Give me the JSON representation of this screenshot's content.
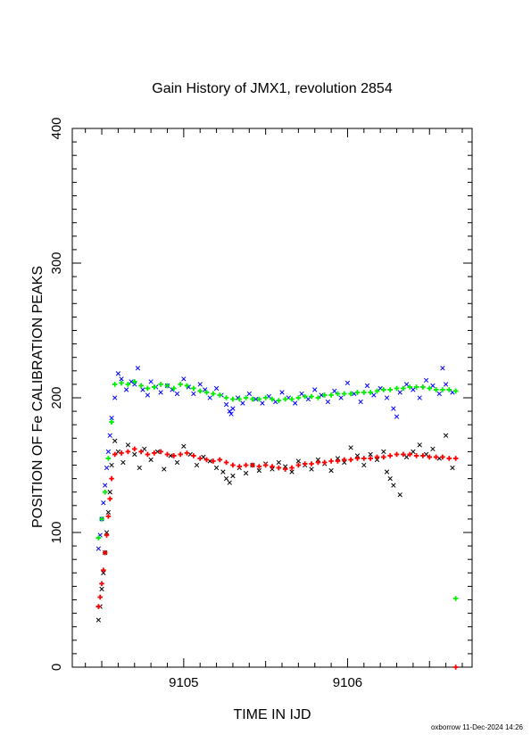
{
  "chart_data": {
    "type": "scatter",
    "title": "Gain History of JMX1, revolution 2854",
    "xlabel": "TIME IN IJD",
    "ylabel": "POSITION OF Fe CALIBRATION PEAKS",
    "xlim": [
      9104.32,
      9106.76
    ],
    "ylim": [
      0,
      400
    ],
    "xticks": [
      9105,
      9106
    ],
    "yticks": [
      0,
      100,
      200,
      300,
      400
    ],
    "grid": false,
    "legend": "none",
    "series": [
      {
        "marker": "x",
        "color": "#0000ff",
        "x": [
          9104.48,
          9104.49,
          9104.5,
          9104.51,
          9104.52,
          9104.53,
          9104.54,
          9104.55,
          9104.56,
          9104.58,
          9104.6,
          9104.62,
          9104.65,
          9104.68,
          9104.7,
          9104.72,
          9104.75,
          9104.78,
          9104.8,
          9104.83,
          9104.86,
          9104.9,
          9104.93,
          9104.96,
          9105.0,
          9105.03,
          9105.06,
          9105.1,
          9105.13,
          9105.16,
          9105.2,
          9105.23,
          9105.26,
          9105.28,
          9105.29,
          9105.3,
          9105.33,
          9105.36,
          9105.4,
          9105.44,
          9105.48,
          9105.52,
          9105.56,
          9105.6,
          9105.64,
          9105.68,
          9105.72,
          9105.76,
          9105.8,
          9105.84,
          9105.88,
          9105.92,
          9105.96,
          9106.0,
          9106.04,
          9106.08,
          9106.12,
          9106.16,
          9106.2,
          9106.24,
          9106.28,
          9106.3,
          9106.32,
          9106.36,
          9106.4,
          9106.44,
          9106.48,
          9106.52,
          9106.56,
          9106.58,
          9106.6,
          9106.64
        ],
        "y": [
          88,
          98,
          110,
          122,
          135,
          148,
          160,
          172,
          185,
          200,
          218,
          214,
          206,
          212,
          210,
          222,
          206,
          202,
          212,
          208,
          204,
          209,
          206,
          203,
          214,
          208,
          203,
          210,
          206,
          200,
          207,
          202,
          195,
          190,
          188,
          192,
          200,
          196,
          203,
          199,
          196,
          201,
          197,
          204,
          200,
          196,
          203,
          199,
          206,
          202,
          197,
          205,
          200,
          211,
          203,
          197,
          209,
          202,
          207,
          200,
          192,
          186,
          204,
          210,
          206,
          200,
          213,
          209,
          203,
          222,
          210,
          204
        ]
      },
      {
        "marker": "x",
        "color": "#000000",
        "x": [
          9104.48,
          9104.49,
          9104.5,
          9104.51,
          9104.52,
          9104.53,
          9104.54,
          9104.55,
          9104.56,
          9104.58,
          9104.6,
          9104.63,
          9104.66,
          9104.7,
          9104.73,
          9104.76,
          9104.8,
          9104.84,
          9104.88,
          9104.92,
          9104.96,
          9105.0,
          9105.04,
          9105.08,
          9105.12,
          9105.16,
          9105.2,
          9105.24,
          9105.26,
          9105.28,
          9105.3,
          9105.34,
          9105.38,
          9105.42,
          9105.46,
          9105.5,
          9105.54,
          9105.58,
          9105.62,
          9105.66,
          9105.7,
          9105.74,
          9105.78,
          9105.82,
          9105.86,
          9105.9,
          9105.94,
          9105.98,
          9106.02,
          9106.06,
          9106.1,
          9106.14,
          9106.18,
          9106.22,
          9106.24,
          9106.26,
          9106.28,
          9106.32,
          9106.36,
          9106.4,
          9106.44,
          9106.48,
          9106.52,
          9106.56,
          9106.6,
          9106.64
        ],
        "y": [
          35,
          45,
          58,
          70,
          85,
          100,
          115,
          130,
          150,
          168,
          160,
          152,
          165,
          158,
          148,
          162,
          154,
          160,
          147,
          157,
          152,
          164,
          158,
          150,
          156,
          153,
          148,
          145,
          140,
          137,
          142,
          148,
          144,
          150,
          146,
          151,
          147,
          152,
          149,
          145,
          153,
          150,
          147,
          154,
          151,
          146,
          155,
          152,
          163,
          157,
          150,
          158,
          154,
          160,
          145,
          140,
          135,
          128,
          156,
          160,
          165,
          158,
          162,
          155,
          172,
          148
        ]
      },
      {
        "marker": "+",
        "color": "#00ee00",
        "x": [
          9104.48,
          9104.5,
          9104.52,
          9104.54,
          9104.56,
          9104.58,
          9104.62,
          9104.66,
          9104.7,
          9104.74,
          9104.78,
          9104.82,
          9104.86,
          9104.9,
          9104.94,
          9104.98,
          9105.02,
          9105.06,
          9105.1,
          9105.14,
          9105.18,
          9105.22,
          9105.26,
          9105.3,
          9105.34,
          9105.38,
          9105.42,
          9105.46,
          9105.5,
          9105.54,
          9105.58,
          9105.62,
          9105.66,
          9105.7,
          9105.74,
          9105.78,
          9105.82,
          9105.86,
          9105.9,
          9105.94,
          9105.98,
          9106.02,
          9106.06,
          9106.1,
          9106.14,
          9106.18,
          9106.22,
          9106.26,
          9106.3,
          9106.34,
          9106.38,
          9106.42,
          9106.46,
          9106.5,
          9106.54,
          9106.58,
          9106.62,
          9106.66,
          9106.66
        ],
        "y": [
          96,
          110,
          130,
          155,
          182,
          210,
          211,
          210,
          212,
          209,
          207,
          208,
          210,
          209,
          207,
          210,
          209,
          207,
          205,
          204,
          203,
          202,
          200,
          199,
          199,
          200,
          199,
          199,
          200,
          199,
          198,
          199,
          199,
          200,
          201,
          201,
          200,
          202,
          202,
          203,
          203,
          203,
          204,
          204,
          204,
          205,
          206,
          206,
          207,
          207,
          208,
          208,
          208,
          207,
          206,
          206,
          206,
          205,
          51
        ]
      },
      {
        "marker": "+",
        "color": "#ff0000",
        "x": [
          9104.48,
          9104.49,
          9104.5,
          9104.51,
          9104.52,
          9104.53,
          9104.54,
          9104.55,
          9104.56,
          9104.58,
          9104.62,
          9104.66,
          9104.7,
          9104.74,
          9104.78,
          9104.82,
          9104.86,
          9104.9,
          9104.94,
          9104.98,
          9105.02,
          9105.06,
          9105.1,
          9105.14,
          9105.18,
          9105.22,
          9105.26,
          9105.3,
          9105.34,
          9105.38,
          9105.42,
          9105.46,
          9105.5,
          9105.54,
          9105.58,
          9105.62,
          9105.66,
          9105.7,
          9105.74,
          9105.78,
          9105.82,
          9105.86,
          9105.9,
          9105.94,
          9105.98,
          9106.02,
          9106.06,
          9106.1,
          9106.14,
          9106.18,
          9106.22,
          9106.26,
          9106.3,
          9106.34,
          9106.38,
          9106.42,
          9106.46,
          9106.5,
          9106.54,
          9106.58,
          9106.62,
          9106.66,
          9106.66
        ],
        "y": [
          45,
          52,
          62,
          72,
          85,
          98,
          112,
          125,
          140,
          158,
          159,
          160,
          162,
          160,
          158,
          159,
          160,
          158,
          157,
          158,
          159,
          157,
          155,
          154,
          153,
          154,
          152,
          150,
          149,
          150,
          150,
          149,
          150,
          149,
          148,
          147,
          148,
          150,
          151,
          151,
          152,
          152,
          153,
          153,
          154,
          154,
          155,
          155,
          155,
          156,
          156,
          157,
          158,
          158,
          158,
          157,
          157,
          156,
          156,
          156,
          155,
          155,
          0
        ]
      }
    ]
  },
  "footer": "oxborrow 11-Dec-2024 14:26"
}
